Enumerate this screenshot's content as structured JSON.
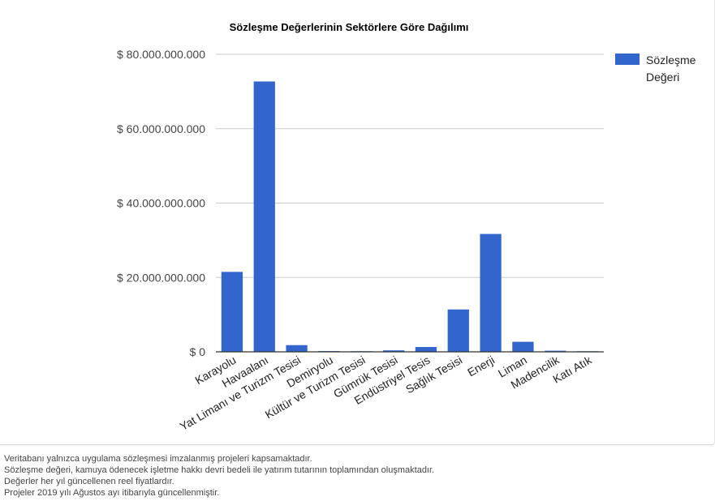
{
  "chart_data": {
    "type": "bar",
    "title": "Sözleşme Değerlerinin Sektörlere Göre Dağılımı",
    "categories": [
      "Karayolu",
      "Havaalanı",
      "Yat Limanı ve Turizm Tesisi",
      "Demiryolu",
      "Kültür ve Turizm Tesisi",
      "Gümrük Tesisi",
      "Endüstriyel Tesis",
      "Sağlık Tesisi",
      "Enerji",
      "Liman",
      "Madencilik",
      "Katı Atık"
    ],
    "series": [
      {
        "name": "Sözleşme Değeri",
        "color": "#3366cc",
        "values": [
          21500000000,
          72700000000,
          1800000000,
          200000000,
          100000000,
          400000000,
          1300000000,
          11400000000,
          31700000000,
          2700000000,
          300000000,
          100000000
        ]
      }
    ],
    "yticks": [
      {
        "value": 0,
        "label": "$ 0"
      },
      {
        "value": 20000000000,
        "label": "$ 20.000.000.000"
      },
      {
        "value": 40000000000,
        "label": "$ 40.000.000.000"
      },
      {
        "value": 60000000000,
        "label": "$ 60.000.000.000"
      },
      {
        "value": 80000000000,
        "label": "$ 80.000.000.000"
      }
    ],
    "ylim": [
      0,
      80000000000
    ],
    "xlabel": "",
    "ylabel": "",
    "grid": true,
    "legend": {
      "position": "right",
      "lines": [
        "Sözleşme",
        "Değeri"
      ]
    }
  },
  "footnotes": [
    "Veritabanı yalnızca uygulama sözleşmesi imzalanmış projeleri kapsamaktadır.",
    "Sözleşme değeri, kamuya ödenecek işletme hakkı devri bedeli ile yatırım tutarının toplamından oluşmaktadır.",
    "Değerler her yıl güncellenen reel fiyatlardır.",
    "Projeler 2019 yılı Ağustos ayı itibarıyla güncellenmiştir."
  ]
}
